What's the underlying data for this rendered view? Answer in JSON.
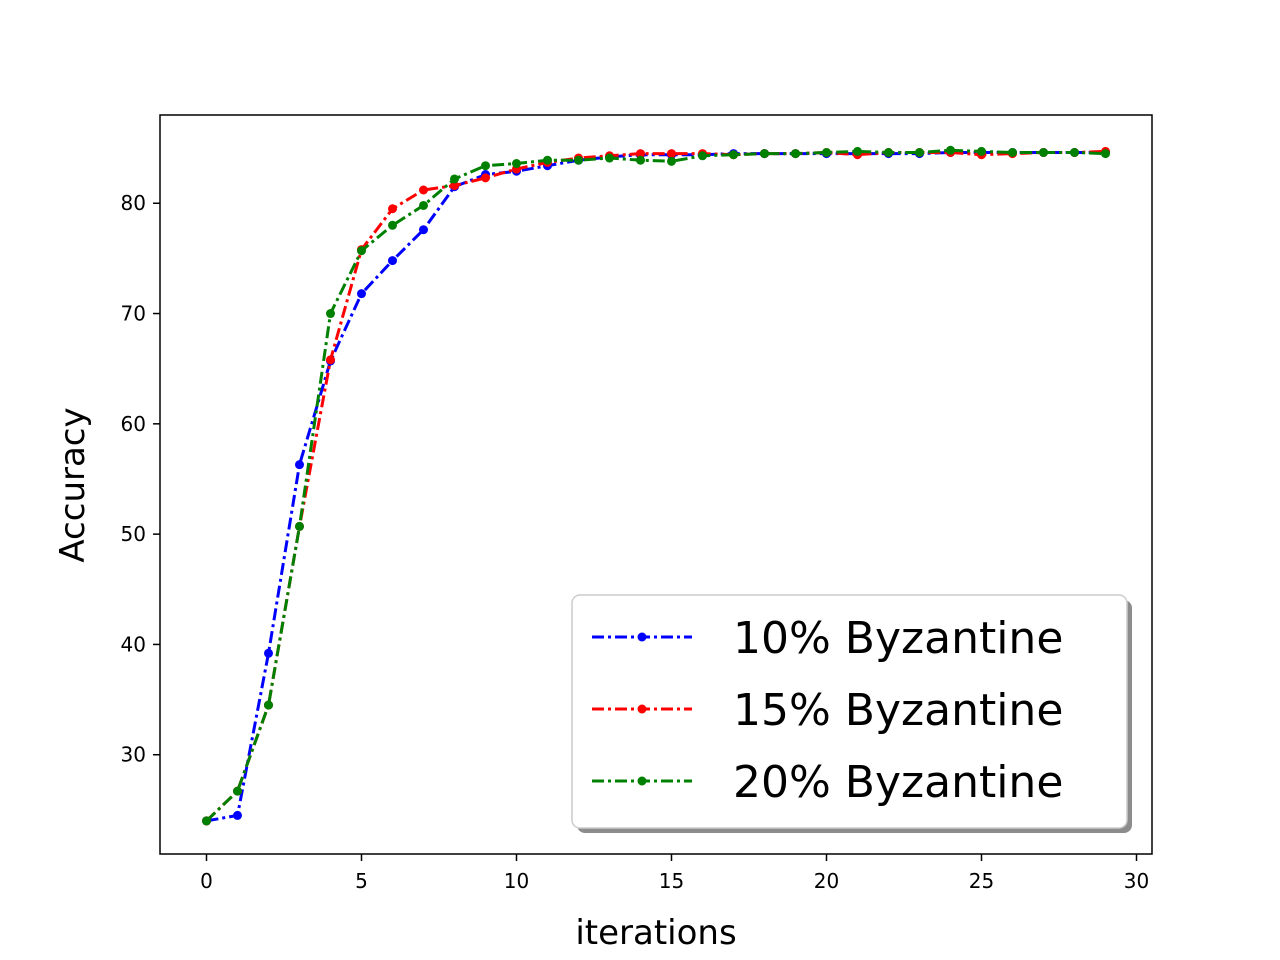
{
  "chart_data": {
    "type": "line",
    "title": "",
    "xlabel": "iterations",
    "ylabel": "Accuracy",
    "xlim": [
      -1.5,
      30.5
    ],
    "ylim": [
      21,
      88
    ],
    "xticks": [
      0,
      5,
      10,
      15,
      20,
      25,
      30
    ],
    "yticks": [
      30,
      40,
      50,
      60,
      70,
      80
    ],
    "grid": false,
    "legend": {
      "position": "lower right"
    },
    "x": [
      0,
      1,
      2,
      3,
      4,
      5,
      6,
      7,
      8,
      9,
      10,
      11,
      12,
      13,
      14,
      15,
      16,
      17,
      18,
      19,
      20,
      21,
      22,
      23,
      24,
      25,
      26,
      27,
      28,
      29
    ],
    "series": [
      {
        "name": "10% Byzantine",
        "color": "#0000ff",
        "style": "dash-dot",
        "marker": "point",
        "values": [
          24.0,
          24.5,
          39.2,
          56.3,
          65.7,
          71.8,
          74.8,
          77.6,
          81.5,
          82.6,
          82.9,
          83.4,
          83.9,
          84.2,
          84.4,
          84.4,
          84.4,
          84.5,
          84.5,
          84.5,
          84.5,
          84.5,
          84.5,
          84.5,
          84.6,
          84.6,
          84.6,
          84.6,
          84.6,
          84.6
        ]
      },
      {
        "name": "15% Byzantine",
        "color": "#ff0000",
        "style": "dash-dot",
        "marker": "point",
        "values": [
          24.0,
          26.7,
          34.5,
          50.7,
          65.8,
          75.8,
          79.5,
          81.2,
          81.6,
          82.3,
          83.1,
          83.7,
          84.1,
          84.3,
          84.5,
          84.5,
          84.5,
          84.4,
          84.5,
          84.5,
          84.6,
          84.4,
          84.6,
          84.6,
          84.6,
          84.4,
          84.5,
          84.6,
          84.6,
          84.7
        ]
      },
      {
        "name": "20% Byzantine",
        "color": "#008000",
        "style": "dash-dot",
        "marker": "point",
        "values": [
          24.0,
          26.7,
          34.5,
          50.7,
          70.0,
          75.7,
          78.0,
          79.8,
          82.2,
          83.4,
          83.6,
          83.9,
          83.9,
          84.1,
          83.9,
          83.8,
          84.3,
          84.4,
          84.5,
          84.5,
          84.6,
          84.7,
          84.6,
          84.6,
          84.8,
          84.7,
          84.6,
          84.6,
          84.6,
          84.5
        ]
      }
    ]
  }
}
